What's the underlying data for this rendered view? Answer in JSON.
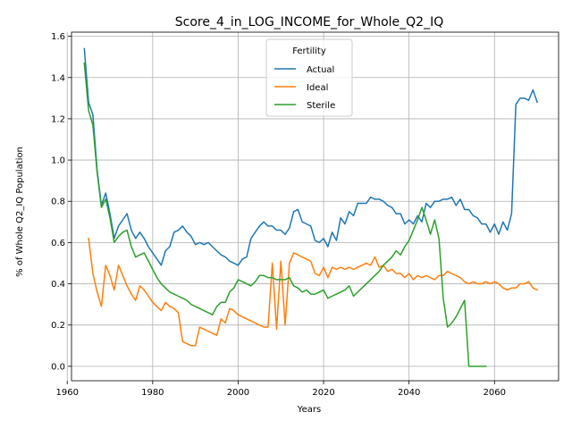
{
  "chart_data": {
    "type": "line",
    "title": "Score_4_in_LOG_INCOME_for_Whole_Q2_IQ",
    "xlabel": "Years",
    "ylabel": "% of Whole Q2_IQ Population",
    "xlim": [
      1961,
      2075
    ],
    "ylim": [
      -0.07,
      1.62
    ],
    "xticks": [
      1960,
      1980,
      2000,
      2020,
      2040,
      2060
    ],
    "yticks": [
      0.0,
      0.2,
      0.4,
      0.6,
      0.8,
      1.0,
      1.2,
      1.4,
      1.6
    ],
    "xtick_labels": [
      "1960",
      "1980",
      "2000",
      "2020",
      "2040",
      "2060"
    ],
    "ytick_labels": [
      "0.0",
      "0.2",
      "0.4",
      "0.6",
      "0.8",
      "1.0",
      "1.2",
      "1.4",
      "1.6"
    ],
    "grid": true,
    "legend": {
      "title": "Fertility",
      "placement": "top-center"
    },
    "series": [
      {
        "name": "Actual",
        "color": "#1f77b4",
        "points": [
          [
            1964,
            1.54
          ],
          [
            1965,
            1.28
          ],
          [
            1966,
            1.22
          ],
          [
            1967,
            0.95
          ],
          [
            1968,
            0.78
          ],
          [
            1969,
            0.84
          ],
          [
            1970,
            0.74
          ],
          [
            1971,
            0.62
          ],
          [
            1972,
            0.68
          ],
          [
            1973,
            0.71
          ],
          [
            1974,
            0.74
          ],
          [
            1975,
            0.66
          ],
          [
            1976,
            0.62
          ],
          [
            1977,
            0.65
          ],
          [
            1978,
            0.62
          ],
          [
            1979,
            0.58
          ],
          [
            1980,
            0.55
          ],
          [
            1981,
            0.52
          ],
          [
            1982,
            0.49
          ],
          [
            1983,
            0.56
          ],
          [
            1984,
            0.58
          ],
          [
            1985,
            0.65
          ],
          [
            1986,
            0.66
          ],
          [
            1987,
            0.68
          ],
          [
            1988,
            0.65
          ],
          [
            1989,
            0.63
          ],
          [
            1990,
            0.59
          ],
          [
            1991,
            0.6
          ],
          [
            1992,
            0.59
          ],
          [
            1993,
            0.6
          ],
          [
            1994,
            0.58
          ],
          [
            1995,
            0.56
          ],
          [
            1996,
            0.54
          ],
          [
            1997,
            0.53
          ],
          [
            1998,
            0.51
          ],
          [
            1999,
            0.5
          ],
          [
            2000,
            0.49
          ],
          [
            2001,
            0.52
          ],
          [
            2002,
            0.53
          ],
          [
            2003,
            0.62
          ],
          [
            2004,
            0.65
          ],
          [
            2005,
            0.68
          ],
          [
            2006,
            0.7
          ],
          [
            2007,
            0.68
          ],
          [
            2008,
            0.68
          ],
          [
            2009,
            0.66
          ],
          [
            2010,
            0.66
          ],
          [
            2011,
            0.64
          ],
          [
            2012,
            0.67
          ],
          [
            2013,
            0.75
          ],
          [
            2014,
            0.76
          ],
          [
            2015,
            0.7
          ],
          [
            2016,
            0.69
          ],
          [
            2017,
            0.68
          ],
          [
            2018,
            0.61
          ],
          [
            2019,
            0.6
          ],
          [
            2020,
            0.62
          ],
          [
            2021,
            0.58
          ],
          [
            2022,
            0.65
          ],
          [
            2023,
            0.61
          ],
          [
            2024,
            0.72
          ],
          [
            2025,
            0.69
          ],
          [
            2026,
            0.75
          ],
          [
            2027,
            0.73
          ],
          [
            2028,
            0.79
          ],
          [
            2029,
            0.79
          ],
          [
            2030,
            0.79
          ],
          [
            2031,
            0.82
          ],
          [
            2032,
            0.81
          ],
          [
            2033,
            0.81
          ],
          [
            2034,
            0.8
          ],
          [
            2035,
            0.78
          ],
          [
            2036,
            0.77
          ],
          [
            2037,
            0.74
          ],
          [
            2038,
            0.74
          ],
          [
            2039,
            0.69
          ],
          [
            2040,
            0.71
          ],
          [
            2041,
            0.69
          ],
          [
            2042,
            0.73
          ],
          [
            2043,
            0.7
          ],
          [
            2044,
            0.79
          ],
          [
            2045,
            0.77
          ],
          [
            2046,
            0.8
          ],
          [
            2047,
            0.8
          ],
          [
            2048,
            0.81
          ],
          [
            2049,
            0.81
          ],
          [
            2050,
            0.82
          ],
          [
            2051,
            0.78
          ],
          [
            2052,
            0.81
          ],
          [
            2053,
            0.76
          ],
          [
            2054,
            0.76
          ],
          [
            2055,
            0.73
          ],
          [
            2056,
            0.72
          ],
          [
            2057,
            0.69
          ],
          [
            2058,
            0.69
          ],
          [
            2059,
            0.65
          ],
          [
            2060,
            0.69
          ],
          [
            2061,
            0.64
          ],
          [
            2062,
            0.7
          ],
          [
            2063,
            0.66
          ],
          [
            2064,
            0.74
          ],
          [
            2065,
            1.27
          ],
          [
            2066,
            1.3
          ],
          [
            2067,
            1.3
          ],
          [
            2068,
            1.29
          ],
          [
            2069,
            1.34
          ],
          [
            2070,
            1.28
          ]
        ]
      },
      {
        "name": "Ideal",
        "color": "#ff7f0e",
        "points": [
          [
            1965,
            0.62
          ],
          [
            1966,
            0.45
          ],
          [
            1967,
            0.36
          ],
          [
            1968,
            0.29
          ],
          [
            1969,
            0.49
          ],
          [
            1970,
            0.44
          ],
          [
            1971,
            0.37
          ],
          [
            1972,
            0.49
          ],
          [
            1973,
            0.44
          ],
          [
            1974,
            0.39
          ],
          [
            1975,
            0.35
          ],
          [
            1976,
            0.32
          ],
          [
            1977,
            0.39
          ],
          [
            1978,
            0.37
          ],
          [
            1979,
            0.34
          ],
          [
            1980,
            0.31
          ],
          [
            1981,
            0.29
          ],
          [
            1982,
            0.27
          ],
          [
            1983,
            0.31
          ],
          [
            1984,
            0.29
          ],
          [
            1985,
            0.28
          ],
          [
            1986,
            0.26
          ],
          [
            1987,
            0.12
          ],
          [
            1988,
            0.11
          ],
          [
            1989,
            0.1
          ],
          [
            1990,
            0.1
          ],
          [
            1991,
            0.19
          ],
          [
            1992,
            0.18
          ],
          [
            1993,
            0.17
          ],
          [
            1994,
            0.16
          ],
          [
            1995,
            0.15
          ],
          [
            1996,
            0.23
          ],
          [
            1997,
            0.21
          ],
          [
            1998,
            0.28
          ],
          [
            1999,
            0.27
          ],
          [
            2000,
            0.25
          ],
          [
            2001,
            0.24
          ],
          [
            2002,
            0.23
          ],
          [
            2003,
            0.22
          ],
          [
            2004,
            0.21
          ],
          [
            2005,
            0.2
          ],
          [
            2006,
            0.19
          ],
          [
            2007,
            0.19
          ],
          [
            2008,
            0.5
          ],
          [
            2009,
            0.18
          ],
          [
            2010,
            0.51
          ],
          [
            2011,
            0.2
          ],
          [
            2012,
            0.5
          ],
          [
            2013,
            0.55
          ],
          [
            2014,
            0.54
          ],
          [
            2015,
            0.53
          ],
          [
            2016,
            0.52
          ],
          [
            2017,
            0.51
          ],
          [
            2018,
            0.45
          ],
          [
            2019,
            0.44
          ],
          [
            2020,
            0.48
          ],
          [
            2021,
            0.43
          ],
          [
            2022,
            0.48
          ],
          [
            2023,
            0.47
          ],
          [
            2024,
            0.48
          ],
          [
            2025,
            0.47
          ],
          [
            2026,
            0.48
          ],
          [
            2027,
            0.47
          ],
          [
            2028,
            0.48
          ],
          [
            2029,
            0.49
          ],
          [
            2030,
            0.5
          ],
          [
            2031,
            0.49
          ],
          [
            2032,
            0.53
          ],
          [
            2033,
            0.48
          ],
          [
            2034,
            0.49
          ],
          [
            2035,
            0.46
          ],
          [
            2036,
            0.47
          ],
          [
            2037,
            0.45
          ],
          [
            2038,
            0.45
          ],
          [
            2039,
            0.43
          ],
          [
            2040,
            0.45
          ],
          [
            2041,
            0.42
          ],
          [
            2042,
            0.44
          ],
          [
            2043,
            0.43
          ],
          [
            2044,
            0.44
          ],
          [
            2045,
            0.43
          ],
          [
            2046,
            0.42
          ],
          [
            2047,
            0.44
          ],
          [
            2048,
            0.44
          ],
          [
            2049,
            0.46
          ],
          [
            2050,
            0.45
          ],
          [
            2051,
            0.44
          ],
          [
            2052,
            0.43
          ],
          [
            2053,
            0.41
          ],
          [
            2054,
            0.4
          ],
          [
            2055,
            0.41
          ],
          [
            2056,
            0.4
          ],
          [
            2057,
            0.4
          ],
          [
            2058,
            0.41
          ],
          [
            2059,
            0.4
          ],
          [
            2060,
            0.41
          ],
          [
            2061,
            0.4
          ],
          [
            2062,
            0.38
          ],
          [
            2063,
            0.37
          ],
          [
            2064,
            0.38
          ],
          [
            2065,
            0.38
          ],
          [
            2066,
            0.4
          ],
          [
            2067,
            0.4
          ],
          [
            2068,
            0.41
          ],
          [
            2069,
            0.38
          ],
          [
            2070,
            0.37
          ]
        ]
      },
      {
        "name": "Sterile",
        "color": "#2ca02c",
        "points": [
          [
            1964,
            1.47
          ],
          [
            1965,
            1.24
          ],
          [
            1966,
            1.17
          ],
          [
            1967,
            0.94
          ],
          [
            1968,
            0.77
          ],
          [
            1969,
            0.81
          ],
          [
            1970,
            0.72
          ],
          [
            1971,
            0.6
          ],
          [
            1972,
            0.63
          ],
          [
            1973,
            0.65
          ],
          [
            1974,
            0.66
          ],
          [
            1975,
            0.58
          ],
          [
            1976,
            0.53
          ],
          [
            1977,
            0.54
          ],
          [
            1978,
            0.55
          ],
          [
            1979,
            0.51
          ],
          [
            1980,
            0.47
          ],
          [
            1981,
            0.43
          ],
          [
            1982,
            0.4
          ],
          [
            1983,
            0.38
          ],
          [
            1984,
            0.36
          ],
          [
            1985,
            0.35
          ],
          [
            1986,
            0.34
          ],
          [
            1987,
            0.33
          ],
          [
            1988,
            0.32
          ],
          [
            1989,
            0.3
          ],
          [
            1990,
            0.29
          ],
          [
            1991,
            0.28
          ],
          [
            1992,
            0.27
          ],
          [
            1993,
            0.26
          ],
          [
            1994,
            0.25
          ],
          [
            1995,
            0.29
          ],
          [
            1996,
            0.31
          ],
          [
            1997,
            0.31
          ],
          [
            1998,
            0.36
          ],
          [
            1999,
            0.38
          ],
          [
            2000,
            0.42
          ],
          [
            2001,
            0.41
          ],
          [
            2002,
            0.4
          ],
          [
            2003,
            0.39
          ],
          [
            2004,
            0.41
          ],
          [
            2005,
            0.44
          ],
          [
            2006,
            0.44
          ],
          [
            2007,
            0.43
          ],
          [
            2008,
            0.43
          ],
          [
            2009,
            0.42
          ],
          [
            2010,
            0.42
          ],
          [
            2011,
            0.42
          ],
          [
            2012,
            0.43
          ],
          [
            2013,
            0.39
          ],
          [
            2014,
            0.38
          ],
          [
            2015,
            0.36
          ],
          [
            2016,
            0.37
          ],
          [
            2017,
            0.35
          ],
          [
            2018,
            0.35
          ],
          [
            2019,
            0.36
          ],
          [
            2020,
            0.37
          ],
          [
            2021,
            0.33
          ],
          [
            2022,
            0.34
          ],
          [
            2023,
            0.35
          ],
          [
            2024,
            0.36
          ],
          [
            2025,
            0.37
          ],
          [
            2026,
            0.39
          ],
          [
            2027,
            0.34
          ],
          [
            2028,
            0.36
          ],
          [
            2029,
            0.38
          ],
          [
            2030,
            0.4
          ],
          [
            2031,
            0.42
          ],
          [
            2032,
            0.44
          ],
          [
            2033,
            0.46
          ],
          [
            2034,
            0.49
          ],
          [
            2035,
            0.51
          ],
          [
            2036,
            0.53
          ],
          [
            2037,
            0.56
          ],
          [
            2038,
            0.54
          ],
          [
            2039,
            0.58
          ],
          [
            2040,
            0.61
          ],
          [
            2041,
            0.66
          ],
          [
            2042,
            0.71
          ],
          [
            2043,
            0.77
          ],
          [
            2044,
            0.71
          ],
          [
            2045,
            0.64
          ],
          [
            2046,
            0.71
          ],
          [
            2047,
            0.62
          ],
          [
            2048,
            0.33
          ],
          [
            2049,
            0.19
          ],
          [
            2050,
            0.21
          ],
          [
            2051,
            0.24
          ],
          [
            2052,
            0.28
          ],
          [
            2053,
            0.32
          ],
          [
            2054,
            0.0
          ],
          [
            2055,
            0.0
          ],
          [
            2056,
            0.0
          ],
          [
            2057,
            0.0
          ],
          [
            2058,
            0.0
          ]
        ]
      }
    ]
  }
}
